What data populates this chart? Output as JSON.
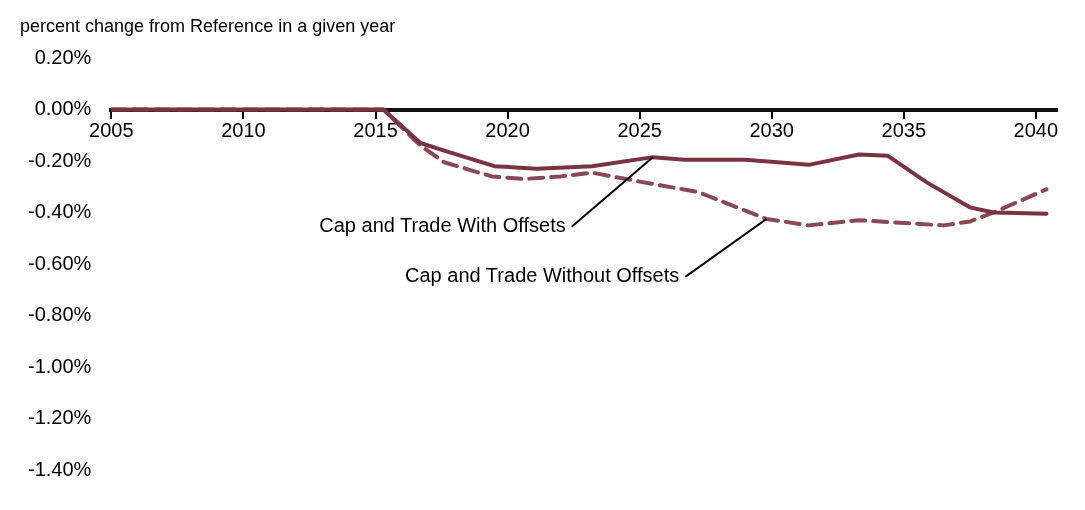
{
  "chart_data": {
    "type": "line",
    "ylabel": "percent change from Reference in a given year",
    "xlim": [
      2005,
      2040.8
    ],
    "xticks": [
      2005,
      2010,
      2015,
      2020,
      2025,
      2030,
      2035,
      2040
    ],
    "ylim": [
      -1.4,
      0.2
    ],
    "yticks": [
      {
        "value": 0.2,
        "label": "0.20%"
      },
      {
        "value": 0,
        "label": "0.00%"
      },
      {
        "value": -0.2,
        "label": "-0.20%"
      },
      {
        "value": -0.4,
        "label": "-0.40%"
      },
      {
        "value": -0.6,
        "label": "-0.60%"
      },
      {
        "value": -0.8,
        "label": "-0.80%"
      },
      {
        "value": -1,
        "label": "-1.00%"
      },
      {
        "value": -1.2,
        "label": "-1.20%"
      },
      {
        "value": -1.4,
        "label": "-1.40%"
      }
    ],
    "grid": false,
    "legend": false,
    "marker": "none",
    "series": [
      {
        "name": "Cap and Trade With Offsets",
        "color": "#7a3441",
        "line_style": "solid",
        "x": [
          2005,
          2015.3,
          2016.7,
          2017.6,
          2019.5,
          2021.1,
          2023.2,
          2025.5,
          2026.7,
          2029,
          2031.4,
          2033.3,
          2034.4,
          2035.9,
          2037.5,
          2038.4,
          2040.4
        ],
        "values": [
          0,
          0,
          -0.13,
          -0.16,
          -0.22,
          -0.23,
          -0.22,
          -0.185,
          -0.195,
          -0.195,
          -0.215,
          -0.175,
          -0.18,
          -0.285,
          -0.38,
          -0.4,
          -0.405
        ]
      },
      {
        "name": "Cap and Trade Without Offsets",
        "color": "#8a4853",
        "line_style": "dashed",
        "x": [
          2005,
          2015.3,
          2016.7,
          2017.6,
          2019.4,
          2020.6,
          2022,
          2023.2,
          2025,
          2027.2,
          2029.8,
          2031.4,
          2033.3,
          2036.5,
          2037.5,
          2038.4,
          2040.4
        ],
        "values": [
          0,
          0,
          -0.14,
          -0.205,
          -0.26,
          -0.27,
          -0.26,
          -0.245,
          -0.28,
          -0.32,
          -0.425,
          -0.45,
          -0.43,
          -0.45,
          -0.435,
          -0.4,
          -0.31
        ]
      }
    ]
  }
}
